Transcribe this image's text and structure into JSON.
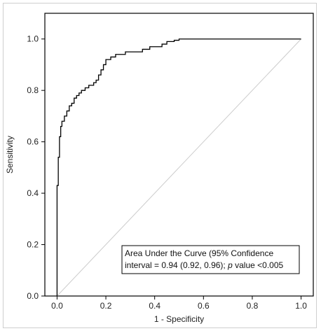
{
  "chart_data": {
    "type": "line",
    "title": "",
    "xlabel": "1 - Specificity",
    "ylabel": "Sensitivity",
    "xlim": [
      -0.05,
      1.05
    ],
    "ylim": [
      0.0,
      1.1
    ],
    "xticks": [
      0.0,
      0.2,
      0.4,
      0.6,
      0.8,
      1.0
    ],
    "xtick_labels": [
      "0.0",
      "0.2",
      "0.4",
      "0.6",
      "0.8",
      "1.0"
    ],
    "yticks": [
      0.0,
      0.2,
      0.4,
      0.6,
      0.8,
      1.0
    ],
    "ytick_labels": [
      "0.0",
      "0.2",
      "0.4",
      "0.6",
      "0.8",
      "1.0"
    ],
    "grid": false,
    "series": [
      {
        "name": "",
        "color": "#000000",
        "x": [
          0.0,
          0.0,
          0.005,
          0.005,
          0.01,
          0.01,
          0.015,
          0.015,
          0.02,
          0.02,
          0.03,
          0.03,
          0.04,
          0.04,
          0.05,
          0.05,
          0.06,
          0.06,
          0.07,
          0.07,
          0.08,
          0.08,
          0.09,
          0.09,
          0.1,
          0.1,
          0.115,
          0.115,
          0.13,
          0.13,
          0.15,
          0.15,
          0.16,
          0.16,
          0.17,
          0.17,
          0.18,
          0.18,
          0.19,
          0.19,
          0.2,
          0.2,
          0.22,
          0.22,
          0.24,
          0.24,
          0.28,
          0.28,
          0.35,
          0.35,
          0.38,
          0.38,
          0.43,
          0.43,
          0.45,
          0.45,
          0.48,
          0.48,
          0.5,
          0.5,
          0.73,
          0.73,
          1.0
        ],
        "y": [
          0.0,
          0.43,
          0.43,
          0.54,
          0.54,
          0.62,
          0.62,
          0.66,
          0.66,
          0.68,
          0.68,
          0.7,
          0.7,
          0.72,
          0.72,
          0.74,
          0.74,
          0.75,
          0.75,
          0.77,
          0.77,
          0.78,
          0.78,
          0.79,
          0.79,
          0.8,
          0.8,
          0.81,
          0.81,
          0.82,
          0.82,
          0.83,
          0.83,
          0.84,
          0.84,
          0.86,
          0.86,
          0.88,
          0.88,
          0.9,
          0.9,
          0.92,
          0.92,
          0.93,
          0.93,
          0.94,
          0.94,
          0.95,
          0.95,
          0.96,
          0.96,
          0.97,
          0.97,
          0.98,
          0.98,
          0.99,
          0.99,
          0.995,
          0.995,
          1.0,
          1.0,
          1.0,
          1.0
        ]
      }
    ],
    "reference_line": {
      "x": [
        0.0,
        1.0
      ],
      "y": [
        0.0,
        1.0
      ],
      "color": "#cccccc"
    },
    "annotation": {
      "line1": "Area Under the Curve (95% Confidence",
      "line2_prefix": "interval = 0.94 (0.92, 0.96); ",
      "line2_italic": "p",
      "line2_suffix": " value <0.005"
    }
  }
}
